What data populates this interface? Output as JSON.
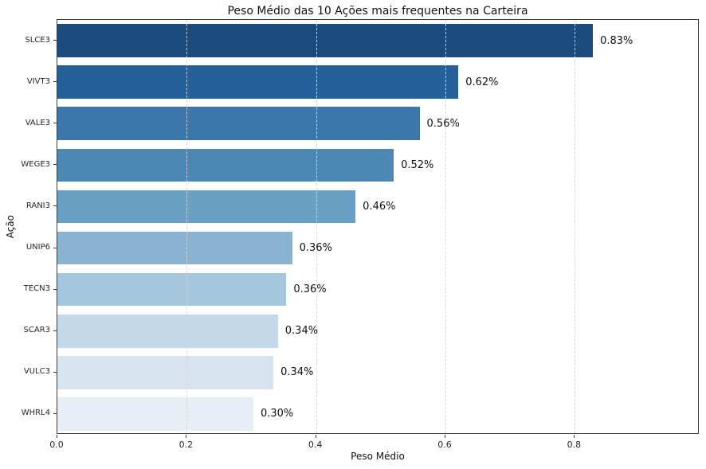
{
  "title": "Peso Médio das 10 Ações mais frequentes na Carteira",
  "chart_data": {
    "type": "bar",
    "orientation": "horizontal",
    "title": "Peso Médio das 10 Ações mais frequentes na Carteira",
    "xlabel": "Peso Médio",
    "ylabel": "Ação",
    "categories": [
      "SLCE3",
      "VIVT3",
      "VALE3",
      "WEGE3",
      "RANI3",
      "UNIP6",
      "TECN3",
      "SCAR3",
      "VULC3",
      "WHRL4"
    ],
    "values": [
      0.83,
      0.62,
      0.56,
      0.52,
      0.46,
      0.36,
      0.36,
      0.34,
      0.34,
      0.3
    ],
    "bar_lengths": [
      0.828,
      0.62,
      0.56,
      0.52,
      0.461,
      0.363,
      0.354,
      0.341,
      0.334,
      0.303
    ],
    "value_labels": [
      "0.83%",
      "0.62%",
      "0.56%",
      "0.52%",
      "0.46%",
      "0.36%",
      "0.36%",
      "0.34%",
      "0.34%",
      "0.30%"
    ],
    "bar_colors": [
      "#1b4a7c",
      "#26609a",
      "#3c76ab",
      "#4d87b3",
      "#6ba0c5",
      "#8ab3d1",
      "#a5c6dd",
      "#c3d8e8",
      "#d7e3ef",
      "#e7eef6"
    ],
    "x_ticks": [
      0.0,
      0.2,
      0.4,
      0.6,
      0.8
    ],
    "x_tick_labels": [
      "0.0",
      "0.2",
      "0.4",
      "0.6",
      "0.8"
    ],
    "xlim": [
      0,
      0.993
    ],
    "grid": "vertical-dashed",
    "grid_color": "#d5d5d5",
    "legend": "none",
    "background": "#ffffff",
    "bar_height_fraction": 0.8
  }
}
